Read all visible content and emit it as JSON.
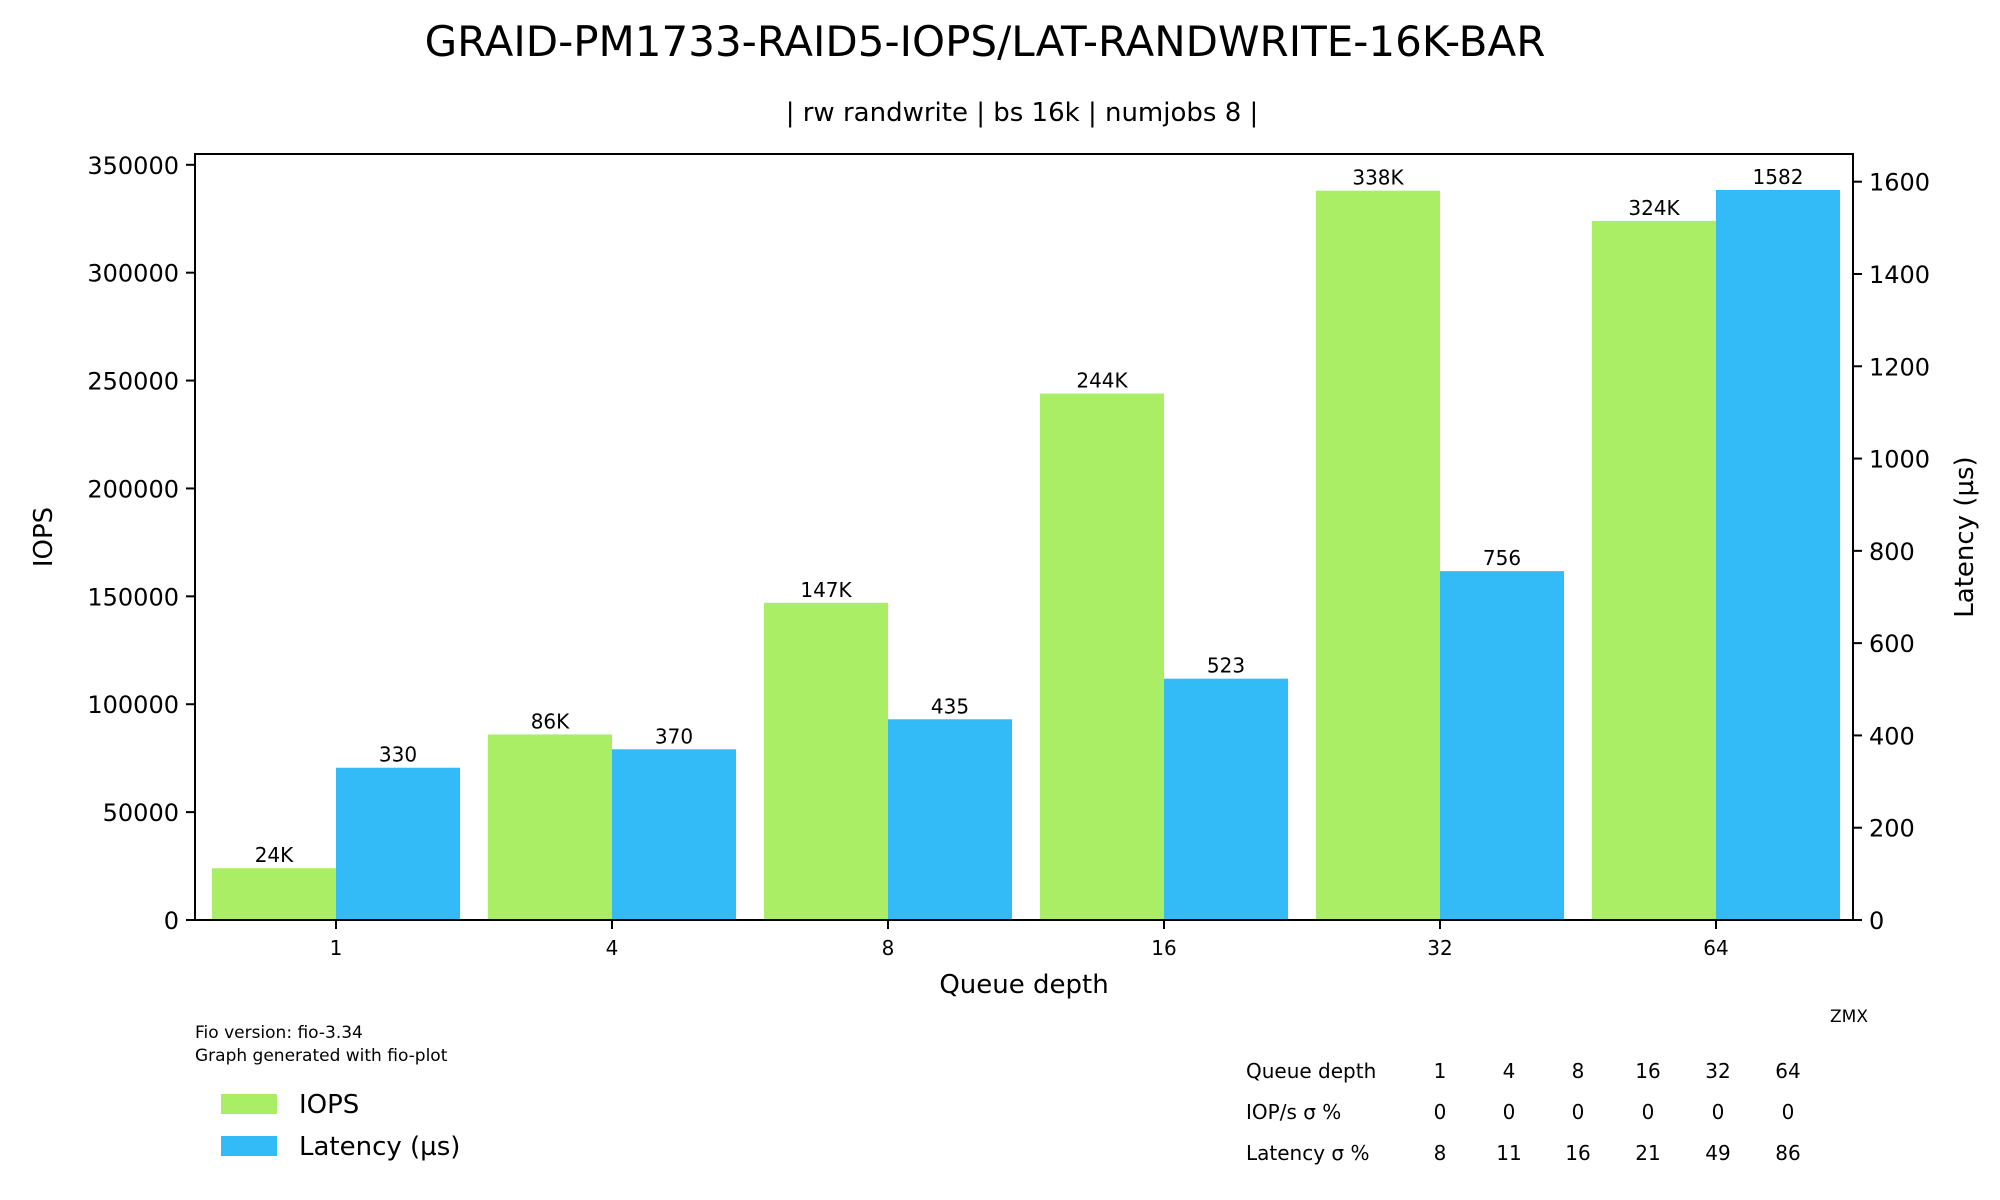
{
  "chart_data": {
    "type": "bar",
    "title": "GRAID-PM1733-RAID5-IOPS/LAT-RANDWRITE-16K-BAR",
    "subtitle": "| rw randwrite | bs 16k | numjobs 8 |",
    "xlabel": "Queue depth",
    "ylabel_left": "IOPS",
    "ylabel_right": "Latency (µs)",
    "categories": [
      "1",
      "4",
      "8",
      "16",
      "32",
      "64"
    ],
    "ylim_left": [
      0,
      355000
    ],
    "ylim_right": [
      0,
      1660
    ],
    "yticks_left": [
      0,
      50000,
      100000,
      150000,
      200000,
      250000,
      300000,
      350000
    ],
    "yticks_left_labels": [
      "0",
      "50000",
      "100000",
      "150000",
      "200000",
      "250000",
      "300000",
      "350000"
    ],
    "yticks_right": [
      0,
      200,
      400,
      600,
      800,
      1000,
      1200,
      1400,
      1600
    ],
    "yticks_right_labels": [
      "0",
      "200",
      "400",
      "600",
      "800",
      "1000",
      "1200",
      "1400",
      "1600"
    ],
    "series": [
      {
        "name": "IOPS",
        "axis": "left",
        "color": "#aaee66",
        "values": [
          24000,
          86000,
          147000,
          244000,
          338000,
          324000
        ],
        "labels": [
          "24K",
          "86K",
          "147K",
          "244K",
          "338K",
          "324K"
        ]
      },
      {
        "name": "Latency (µs)",
        "axis": "right",
        "color": "#33bbf8",
        "values": [
          330,
          370,
          435,
          523,
          756,
          1582
        ],
        "labels": [
          "330",
          "370",
          "435",
          "523",
          "756",
          "1582"
        ]
      }
    ],
    "legend": {
      "location": "bottom-left",
      "entries": [
        "IOPS",
        "Latency (µs)"
      ]
    },
    "annotations": {
      "fio_version": "Fio version: fio-3.34",
      "generated_with": "Graph generated with fio-plot",
      "author": "ZMX"
    },
    "table": {
      "row_labels": [
        "Queue depth",
        "IOP/s σ %",
        "Latency σ %"
      ],
      "rows": [
        [
          "1",
          "4",
          "8",
          "16",
          "32",
          "64"
        ],
        [
          "0",
          "0",
          "0",
          "0",
          "0",
          "0"
        ],
        [
          "8",
          "11",
          "16",
          "21",
          "49",
          "86"
        ]
      ]
    }
  }
}
